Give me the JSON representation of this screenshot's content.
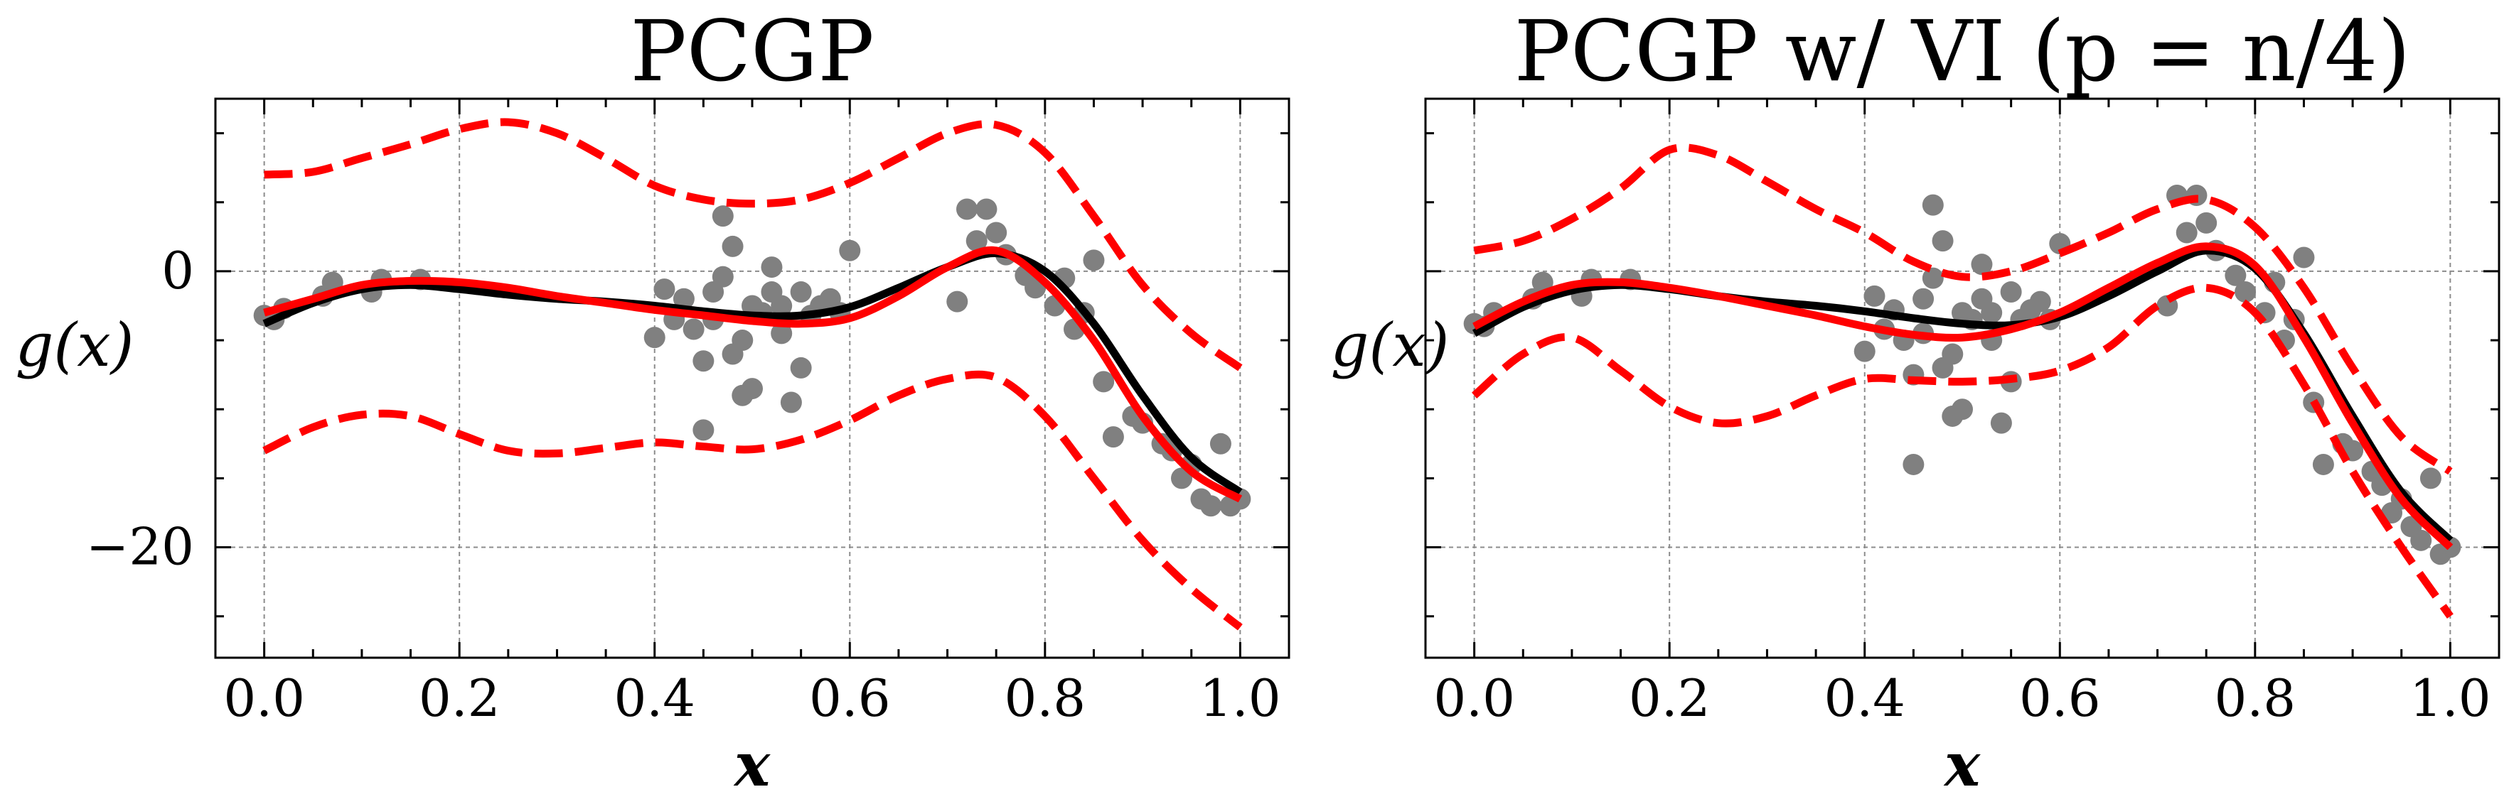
{
  "chart_data": [
    {
      "type": "line",
      "title": "PCGP",
      "xlabel": "x",
      "ylabel": "g(x)",
      "xlim": [
        -0.05,
        1.05
      ],
      "ylim": [
        -28,
        12.5
      ],
      "xticks": [
        0.0,
        0.2,
        0.4,
        0.6,
        0.8,
        1.0
      ],
      "xtick_labels": [
        "0.0",
        "0.2",
        "0.4",
        "0.6",
        "0.8",
        "1.0"
      ],
      "yticks": [
        0,
        -20
      ],
      "ytick_labels": [
        "0",
        "−20"
      ],
      "show_ytick_labels": true,
      "grid": true,
      "series": [
        {
          "role": "data-points",
          "color": "#808080",
          "x": [
            0.0,
            0.01,
            0.02,
            0.06,
            0.07,
            0.11,
            0.12,
            0.16,
            0.4,
            0.41,
            0.42,
            0.43,
            0.44,
            0.45,
            0.45,
            0.46,
            0.46,
            0.47,
            0.47,
            0.48,
            0.48,
            0.49,
            0.49,
            0.5,
            0.5,
            0.51,
            0.52,
            0.52,
            0.53,
            0.53,
            0.54,
            0.55,
            0.55,
            0.56,
            0.57,
            0.58,
            0.59,
            0.6,
            0.71,
            0.72,
            0.73,
            0.74,
            0.75,
            0.76,
            0.78,
            0.79,
            0.81,
            0.82,
            0.83,
            0.84,
            0.85,
            0.86,
            0.87,
            0.89,
            0.9,
            0.92,
            0.93,
            0.94,
            0.95,
            0.96,
            0.97,
            0.98,
            0.99,
            1.0
          ],
          "y": [
            -3.2,
            -3.5,
            -2.7,
            -1.8,
            -0.8,
            -1.5,
            -0.6,
            -0.6,
            -4.8,
            -1.3,
            -3.5,
            -2.0,
            -4.2,
            -6.5,
            -11.5,
            -1.5,
            -3.5,
            -0.4,
            4.0,
            1.8,
            -6.0,
            -5.0,
            -9.0,
            -2.5,
            -8.5,
            -3.0,
            0.3,
            -1.5,
            -4.5,
            -2.5,
            -9.5,
            -7.0,
            -1.5,
            -3.2,
            -2.5,
            -2.0,
            -3.0,
            1.5,
            -2.2,
            4.5,
            2.2,
            4.5,
            2.8,
            1.2,
            -0.3,
            -1.2,
            -2.5,
            -0.5,
            -4.2,
            -3.0,
            0.8,
            -8.0,
            -12.0,
            -10.5,
            -11.0,
            -12.5,
            -13.0,
            -15.0,
            -14.0,
            -16.5,
            -17.0,
            -12.5,
            -17.0,
            -16.5
          ]
        },
        {
          "role": "true-function",
          "color": "#000000",
          "x": [
            0.0,
            0.05,
            0.1,
            0.15,
            0.2,
            0.25,
            0.3,
            0.35,
            0.4,
            0.45,
            0.5,
            0.55,
            0.6,
            0.65,
            0.7,
            0.75,
            0.8,
            0.85,
            0.9,
            0.95,
            1.0
          ],
          "y": [
            -3.8,
            -2.3,
            -1.3,
            -1.0,
            -1.3,
            -1.7,
            -2.0,
            -2.2,
            -2.5,
            -2.9,
            -3.2,
            -3.2,
            -2.6,
            -1.2,
            0.3,
            1.3,
            0.0,
            -3.8,
            -9.0,
            -13.5,
            -16.0
          ]
        },
        {
          "role": "mean-prediction",
          "color": "#ff0000",
          "x": [
            0.0,
            0.05,
            0.1,
            0.15,
            0.2,
            0.25,
            0.3,
            0.35,
            0.4,
            0.45,
            0.5,
            0.55,
            0.6,
            0.65,
            0.7,
            0.75,
            0.8,
            0.85,
            0.9,
            0.95,
            1.0
          ],
          "y": [
            -3.0,
            -2.0,
            -1.0,
            -0.7,
            -0.8,
            -1.2,
            -1.8,
            -2.3,
            -2.8,
            -3.2,
            -3.6,
            -3.8,
            -3.4,
            -1.8,
            0.3,
            1.5,
            -0.8,
            -5.0,
            -10.5,
            -14.5,
            -16.5
          ]
        },
        {
          "role": "upper-interval",
          "color": "#ff0000",
          "dashed": true,
          "x": [
            0.0,
            0.05,
            0.1,
            0.15,
            0.2,
            0.25,
            0.3,
            0.35,
            0.4,
            0.45,
            0.5,
            0.55,
            0.6,
            0.65,
            0.7,
            0.75,
            0.8,
            0.85,
            0.9,
            0.95,
            1.0
          ],
          "y": [
            7.0,
            7.2,
            8.2,
            9.2,
            10.3,
            10.8,
            10.0,
            8.2,
            6.2,
            5.2,
            4.9,
            5.2,
            6.4,
            8.2,
            10.0,
            10.6,
            8.6,
            4.0,
            -1.0,
            -4.5,
            -7.0
          ]
        },
        {
          "role": "lower-interval",
          "color": "#ff0000",
          "dashed": true,
          "x": [
            0.0,
            0.05,
            0.1,
            0.15,
            0.2,
            0.25,
            0.3,
            0.35,
            0.4,
            0.45,
            0.5,
            0.55,
            0.6,
            0.65,
            0.7,
            0.75,
            0.8,
            0.85,
            0.9,
            0.95,
            1.0
          ],
          "y": [
            -13.0,
            -11.3,
            -10.4,
            -10.5,
            -11.8,
            -13.0,
            -13.2,
            -12.8,
            -12.4,
            -12.7,
            -12.9,
            -12.2,
            -10.8,
            -9.0,
            -7.8,
            -7.7,
            -10.5,
            -15.0,
            -19.5,
            -23.0,
            -25.8
          ]
        }
      ]
    },
    {
      "type": "line",
      "title": "PCGP w/ VI (p = n/4)",
      "xlabel": "x",
      "ylabel": "g(x)",
      "xlim": [
        -0.05,
        1.05
      ],
      "ylim": [
        -28,
        12.5
      ],
      "xticks": [
        0.0,
        0.2,
        0.4,
        0.6,
        0.8,
        1.0
      ],
      "xtick_labels": [
        "0.0",
        "0.2",
        "0.4",
        "0.6",
        "0.8",
        "1.0"
      ],
      "yticks": [
        0,
        -20
      ],
      "ytick_labels": [
        "0",
        "−20"
      ],
      "show_ytick_labels": false,
      "grid": true,
      "series": [
        {
          "role": "data-points",
          "color": "#808080",
          "x": [
            0.0,
            0.01,
            0.02,
            0.06,
            0.07,
            0.11,
            0.12,
            0.16,
            0.4,
            0.41,
            0.42,
            0.43,
            0.44,
            0.45,
            0.45,
            0.46,
            0.46,
            0.47,
            0.47,
            0.48,
            0.48,
            0.49,
            0.49,
            0.5,
            0.5,
            0.51,
            0.52,
            0.52,
            0.53,
            0.53,
            0.54,
            0.55,
            0.55,
            0.56,
            0.57,
            0.58,
            0.59,
            0.6,
            0.71,
            0.72,
            0.73,
            0.74,
            0.75,
            0.76,
            0.78,
            0.79,
            0.81,
            0.82,
            0.83,
            0.84,
            0.85,
            0.86,
            0.87,
            0.89,
            0.9,
            0.92,
            0.93,
            0.94,
            0.95,
            0.96,
            0.97,
            0.98,
            0.99,
            1.0
          ],
          "y": [
            -3.8,
            -4.0,
            -3.0,
            -2.0,
            -0.8,
            -1.8,
            -0.6,
            -0.6,
            -5.8,
            -1.8,
            -4.2,
            -2.8,
            -5.0,
            -7.5,
            -14.0,
            -2.0,
            -4.5,
            -0.5,
            4.8,
            2.2,
            -7.0,
            -6.0,
            -10.5,
            -3.0,
            -10.0,
            -3.5,
            0.5,
            -2.0,
            -5.0,
            -3.0,
            -11.0,
            -8.0,
            -1.5,
            -3.5,
            -2.8,
            -2.2,
            -3.5,
            2.0,
            -2.5,
            5.5,
            2.8,
            5.5,
            3.5,
            1.5,
            -0.3,
            -1.5,
            -3.0,
            -0.8,
            -5.0,
            -3.5,
            1.0,
            -9.5,
            -14.0,
            -12.5,
            -13.0,
            -14.5,
            -15.5,
            -17.5,
            -16.5,
            -18.5,
            -19.5,
            -15.0,
            -20.5,
            -20.0
          ]
        },
        {
          "role": "true-function",
          "color": "#000000",
          "x": [
            0.0,
            0.05,
            0.1,
            0.15,
            0.2,
            0.25,
            0.3,
            0.35,
            0.4,
            0.45,
            0.5,
            0.55,
            0.6,
            0.65,
            0.7,
            0.75,
            0.8,
            0.85,
            0.9,
            0.95,
            1.0
          ],
          "y": [
            -4.5,
            -2.6,
            -1.4,
            -1.0,
            -1.3,
            -1.8,
            -2.2,
            -2.5,
            -2.9,
            -3.4,
            -3.8,
            -3.9,
            -3.3,
            -1.8,
            0.0,
            1.5,
            0.2,
            -4.5,
            -10.5,
            -16.0,
            -19.5
          ]
        },
        {
          "role": "mean-prediction",
          "color": "#ff0000",
          "x": [
            0.0,
            0.05,
            0.1,
            0.15,
            0.2,
            0.25,
            0.3,
            0.35,
            0.4,
            0.45,
            0.5,
            0.55,
            0.6,
            0.65,
            0.7,
            0.75,
            0.8,
            0.85,
            0.9,
            0.95,
            1.0
          ],
          "y": [
            -4.0,
            -2.2,
            -1.0,
            -0.8,
            -1.2,
            -1.8,
            -2.5,
            -3.2,
            -4.0,
            -4.6,
            -4.8,
            -4.2,
            -3.0,
            -1.2,
            0.6,
            1.8,
            0.4,
            -4.8,
            -11.0,
            -16.5,
            -20.0
          ]
        },
        {
          "role": "upper-interval",
          "color": "#ff0000",
          "dashed": true,
          "x": [
            0.0,
            0.05,
            0.1,
            0.15,
            0.2,
            0.25,
            0.3,
            0.35,
            0.4,
            0.45,
            0.5,
            0.55,
            0.6,
            0.65,
            0.7,
            0.75,
            0.8,
            0.85,
            0.9,
            0.95,
            1.0
          ],
          "y": [
            1.5,
            2.2,
            3.8,
            6.0,
            8.8,
            8.4,
            6.5,
            4.5,
            2.8,
            0.7,
            -0.4,
            0.0,
            1.3,
            2.8,
            4.5,
            5.2,
            3.2,
            -1.2,
            -7.0,
            -12.0,
            -14.5
          ]
        },
        {
          "role": "lower-interval",
          "color": "#ff0000",
          "dashed": true,
          "x": [
            0.0,
            0.05,
            0.1,
            0.15,
            0.2,
            0.25,
            0.3,
            0.35,
            0.4,
            0.45,
            0.5,
            0.55,
            0.6,
            0.65,
            0.7,
            0.75,
            0.8,
            0.85,
            0.9,
            0.95,
            1.0
          ],
          "y": [
            -9.0,
            -6.0,
            -4.8,
            -7.2,
            -9.8,
            -11.0,
            -10.5,
            -9.0,
            -7.8,
            -7.9,
            -8.0,
            -7.8,
            -7.2,
            -5.5,
            -2.5,
            -1.2,
            -3.0,
            -8.2,
            -14.5,
            -20.0,
            -25.0
          ]
        }
      ]
    }
  ]
}
